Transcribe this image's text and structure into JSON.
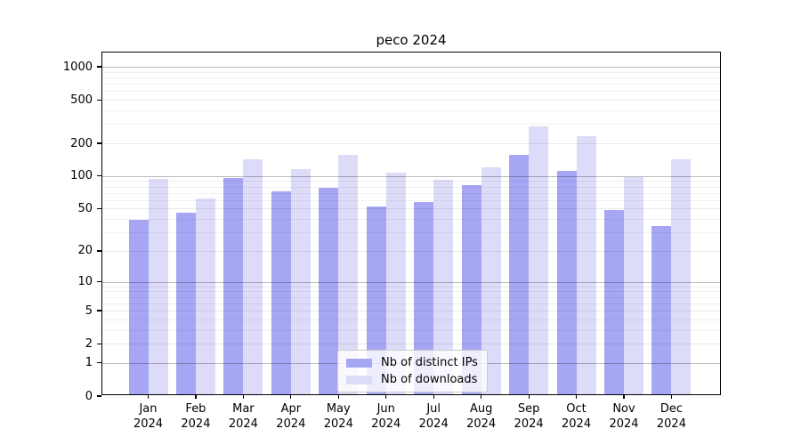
{
  "title": "peco 2024",
  "chart_data": {
    "type": "bar",
    "title": "peco 2024",
    "categories": [
      "Jan 2024",
      "Feb 2024",
      "Mar 2024",
      "Apr 2024",
      "May 2024",
      "Jun 2024",
      "Jul 2024",
      "Aug 2024",
      "Sep 2024",
      "Oct 2024",
      "Nov 2024",
      "Dec 2024"
    ],
    "series": [
      {
        "name": "Nb of distinct IPs",
        "color": "#a6a6f4",
        "values": [
          38,
          44,
          93,
          70,
          75,
          50,
          55,
          79,
          150,
          108,
          47,
          33
        ]
      },
      {
        "name": "Nb of downloads",
        "color": "#dcdcf8",
        "values": [
          90,
          60,
          138,
          112,
          152,
          103,
          89,
          115,
          275,
          222,
          95,
          138
        ]
      }
    ],
    "xlabel": "",
    "ylabel": "",
    "yscale": "log1p",
    "ylim": [
      0,
      1350
    ],
    "yticks": [
      0,
      1,
      2,
      5,
      10,
      20,
      50,
      100,
      200,
      500,
      1000
    ],
    "major_grid_values": [
      1,
      10,
      100,
      1000
    ],
    "labeled_grid_values": [
      2,
      5,
      20,
      50,
      200,
      500
    ],
    "minor_grid_values": [
      3,
      4,
      6,
      7,
      8,
      9,
      30,
      40,
      60,
      70,
      80,
      90,
      300,
      400,
      600,
      700,
      800,
      900
    ],
    "grid": true,
    "legend_position": "lower center"
  }
}
